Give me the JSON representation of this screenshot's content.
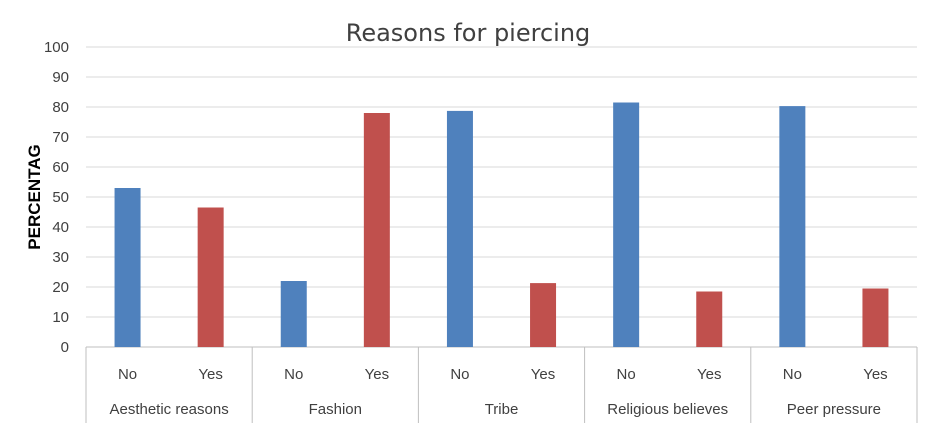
{
  "chart_data": {
    "type": "bar",
    "title": "Reasons for piercing",
    "xlabel": "",
    "ylabel": "PERCENTAG",
    "ylim": [
      0,
      100
    ],
    "yticks": [
      0,
      10,
      20,
      30,
      40,
      50,
      60,
      70,
      80,
      90,
      100
    ],
    "grid": true,
    "groups": [
      {
        "name": "Aesthetic reasons",
        "bars": [
          {
            "label": "No",
            "value": 53
          },
          {
            "label": "Yes",
            "value": 46.5
          }
        ]
      },
      {
        "name": "Fashion",
        "bars": [
          {
            "label": "No",
            "value": 22
          },
          {
            "label": "Yes",
            "value": 78
          }
        ]
      },
      {
        "name": "Tribe",
        "bars": [
          {
            "label": "No",
            "value": 78.7
          },
          {
            "label": "Yes",
            "value": 21.3
          }
        ]
      },
      {
        "name": "Religious believes",
        "bars": [
          {
            "label": "No",
            "value": 81.5
          },
          {
            "label": "Yes",
            "value": 18.5
          }
        ]
      },
      {
        "name": "Peer pressure",
        "bars": [
          {
            "label": "No",
            "value": 80.3
          },
          {
            "label": "Yes",
            "value": 19.5
          }
        ]
      }
    ],
    "colors": {
      "No": "#4f81bd",
      "Yes": "#c0504d",
      "grid": "#d9d9d9",
      "axis": "#bfbfbf"
    }
  }
}
